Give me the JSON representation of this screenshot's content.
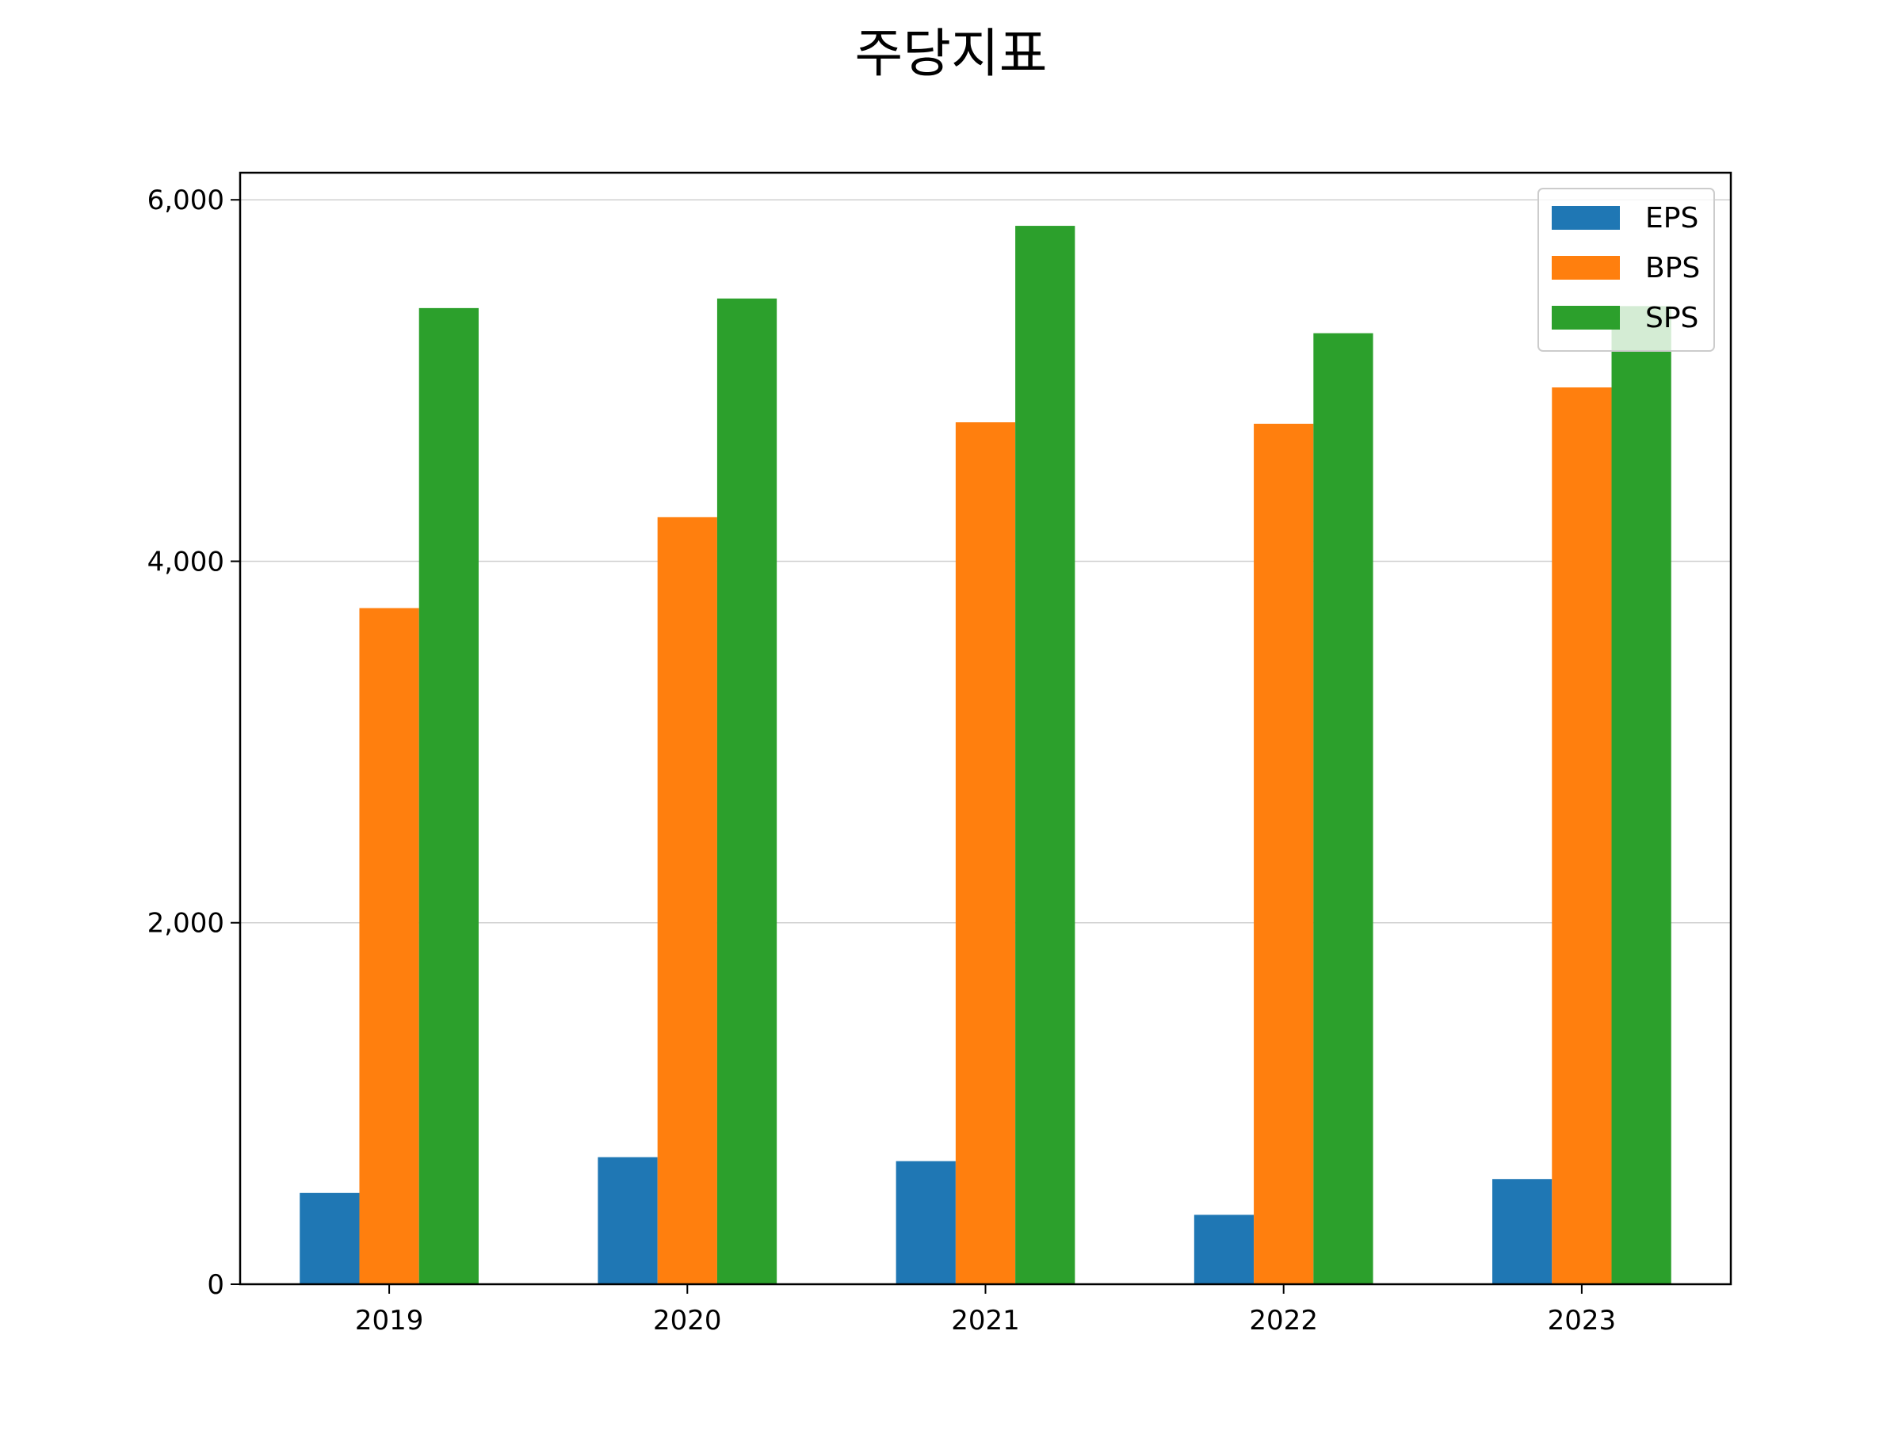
{
  "chart_data": {
    "type": "bar",
    "title": "주당지표",
    "xlabel": "",
    "ylabel": "",
    "categories": [
      "2019",
      "2020",
      "2021",
      "2022",
      "2023"
    ],
    "series": [
      {
        "name": "EPS",
        "color": "#1f77b4",
        "values": [
          505,
          703,
          681,
          384,
          582
        ]
      },
      {
        "name": "BPS",
        "color": "#ff7f0e",
        "values": [
          3741,
          4244,
          4769,
          4761,
          4962
        ]
      },
      {
        "name": "SPS",
        "color": "#2ca02c",
        "values": [
          5401,
          5454,
          5856,
          5262,
          5412
        ]
      }
    ],
    "ylim": [
      0,
      6150
    ],
    "yticks": [
      0,
      2000,
      4000,
      6000
    ],
    "ytick_labels": [
      "0",
      "2,000",
      "4,000",
      "6,000"
    ],
    "grid": "y",
    "legend_position": "top-right"
  }
}
